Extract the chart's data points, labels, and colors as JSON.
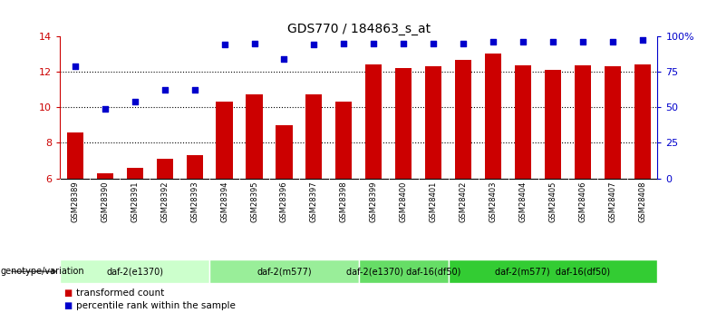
{
  "title": "GDS770 / 184863_s_at",
  "samples": [
    "GSM28389",
    "GSM28390",
    "GSM28391",
    "GSM28392",
    "GSM28393",
    "GSM28394",
    "GSM28395",
    "GSM28396",
    "GSM28397",
    "GSM28398",
    "GSM28399",
    "GSM28400",
    "GSM28401",
    "GSM28402",
    "GSM28403",
    "GSM28404",
    "GSM28405",
    "GSM28406",
    "GSM28407",
    "GSM28408"
  ],
  "bar_values": [
    8.6,
    6.3,
    6.6,
    7.1,
    7.3,
    10.3,
    10.7,
    9.0,
    10.7,
    10.3,
    12.4,
    12.2,
    12.3,
    12.65,
    13.0,
    12.35,
    12.1,
    12.35,
    12.3,
    12.4
  ],
  "dot_values": [
    12.3,
    9.9,
    10.3,
    11.0,
    11.0,
    13.5,
    13.6,
    12.7,
    13.5,
    13.6,
    13.6,
    13.6,
    13.6,
    13.6,
    13.7,
    13.7,
    13.7,
    13.7,
    13.7,
    13.8
  ],
  "bar_color": "#cc0000",
  "dot_color": "#0000cc",
  "ylim": [
    6,
    14
  ],
  "yticks_left": [
    6,
    8,
    10,
    12,
    14
  ],
  "yticks_right_pct": [
    0,
    25,
    50,
    75,
    100
  ],
  "yticks_right_labels": [
    "0",
    "25",
    "50",
    "75",
    "100%"
  ],
  "grid_yticks": [
    8,
    10,
    12
  ],
  "groups": [
    {
      "label": "daf-2(e1370)",
      "start": 0,
      "end": 4,
      "color": "#ccffcc"
    },
    {
      "label": "daf-2(m577)",
      "start": 5,
      "end": 9,
      "color": "#99ee99"
    },
    {
      "label": "daf-2(e1370) daf-16(df50)",
      "start": 10,
      "end": 12,
      "color": "#66dd66"
    },
    {
      "label": "daf-2(m577)  daf-16(df50)",
      "start": 13,
      "end": 19,
      "color": "#33cc33"
    }
  ],
  "genotype_label": "genotype/variation",
  "legend_bar_label": "transformed count",
  "legend_dot_label": "percentile rank within the sample",
  "tick_bg_color": "#c8c8c8",
  "bar_color_hex": "#cc0000",
  "dot_color_hex": "#0000cc"
}
